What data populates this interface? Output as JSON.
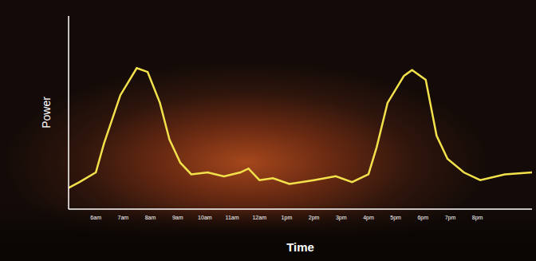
{
  "chart_data": {
    "type": "line",
    "x_label": "Time",
    "y_label": "Power",
    "x": [
      5.0,
      5.4,
      6.0,
      6.3,
      6.9,
      7.5,
      7.9,
      8.35,
      8.7,
      9.1,
      9.5,
      10.1,
      10.7,
      11.3,
      11.6,
      12.0,
      12.5,
      13.1,
      14.0,
      14.8,
      15.4,
      16.0,
      16.3,
      16.7,
      17.3,
      17.6,
      18.1,
      18.5,
      18.9,
      19.5,
      20.1,
      21.0,
      22.0
    ],
    "values": [
      11,
      14,
      19,
      34,
      59,
      73,
      71,
      55,
      36,
      24,
      18,
      19,
      17,
      19,
      21,
      15,
      16,
      13,
      15,
      17,
      14,
      18,
      32,
      55,
      69,
      72,
      67,
      38,
      26,
      19,
      15,
      18,
      19
    ],
    "color": "#f3e14b",
    "xlim": [
      5,
      22
    ],
    "xticks": [
      {
        "value": 6,
        "label": "6am"
      },
      {
        "value": 7,
        "label": "7am"
      },
      {
        "value": 8,
        "label": "8am"
      },
      {
        "value": 9,
        "label": "9am"
      },
      {
        "value": 10,
        "label": "10am"
      },
      {
        "value": 11,
        "label": "11am"
      },
      {
        "value": 12,
        "label": "12am"
      },
      {
        "value": 13,
        "label": "1pm"
      },
      {
        "value": 14,
        "label": "2pm"
      },
      {
        "value": 15,
        "label": "3pm"
      },
      {
        "value": 16,
        "label": "4pm"
      },
      {
        "value": 17,
        "label": "5pm"
      },
      {
        "value": 18,
        "label": "6pm"
      },
      {
        "value": 19,
        "label": "7pm"
      },
      {
        "value": 20,
        "label": "8pm"
      }
    ],
    "ylim": [
      0,
      100
    ],
    "tick_labels": "x",
    "grid": false
  }
}
